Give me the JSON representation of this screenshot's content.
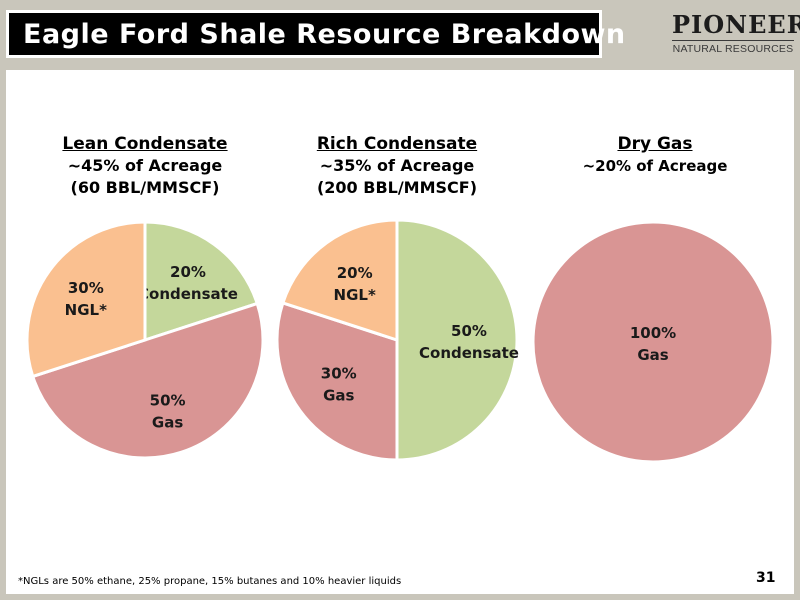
{
  "slide": {
    "title": "Eagle Ford Shale Resource Breakdown",
    "logo_main": "PIONEER",
    "logo_sub": "NATURAL RESOURCES",
    "footnote": "*NGLs are 50% ethane, 25% propane, 15% butanes and 10% heavier liquids",
    "page_number": "31"
  },
  "colors": {
    "condensate": "#c4d79b",
    "gas": "#d99594",
    "ngl": "#fac090"
  },
  "chart_data": [
    {
      "type": "pie",
      "title": "Lean Condensate",
      "subtitle": "~45% of Acreage",
      "note": "(60 BBL/MMSCF)",
      "slices": [
        {
          "label_line1": "20%",
          "label_line2": "Condensate",
          "value": 20,
          "color": "#c4d79b"
        },
        {
          "label_line1": "50%",
          "label_line2": "Gas",
          "value": 50,
          "color": "#d99594"
        },
        {
          "label_line1": "30%",
          "label_line2": "NGL*",
          "value": 30,
          "color": "#fac090"
        }
      ]
    },
    {
      "type": "pie",
      "title": "Rich Condensate",
      "subtitle": "~35% of Acreage",
      "note": "(200 BBL/MMSCF)",
      "slices": [
        {
          "label_line1": "50%",
          "label_line2": "Condensate",
          "value": 50,
          "color": "#c4d79b"
        },
        {
          "label_line1": "30%",
          "label_line2": "Gas",
          "value": 30,
          "color": "#d99594"
        },
        {
          "label_line1": "20%",
          "label_line2": "NGL*",
          "value": 20,
          "color": "#fac090"
        }
      ]
    },
    {
      "type": "pie",
      "title": "Dry Gas",
      "subtitle": "~20% of Acreage",
      "note": "",
      "slices": [
        {
          "label_line1": "100%",
          "label_line2": "Gas",
          "value": 100,
          "color": "#d99594"
        }
      ]
    }
  ]
}
